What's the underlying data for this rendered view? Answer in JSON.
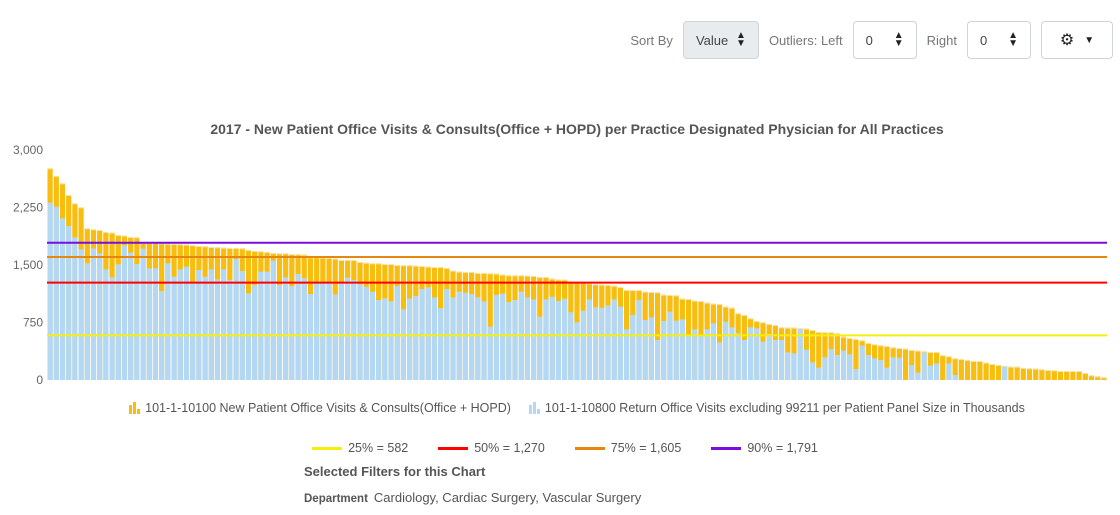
{
  "toolbar": {
    "sort_label": "Sort By",
    "sort_value": "Value",
    "outliers_left_label": "Outliers: Left",
    "outliers_left_value": "0",
    "right_label": "Right",
    "outliers_right_value": "0",
    "settings_icon": "gear-icon"
  },
  "chart_data": {
    "type": "bar",
    "title": "2017 - New Patient Office Visits & Consults(Office + HOPD) per Practice Designated Physician for All Practices",
    "ylim": [
      0,
      3000
    ],
    "yticks": [
      "0",
      "750",
      "1,500",
      "2,250",
      "3,000"
    ],
    "ytick_values": [
      0,
      750,
      1500,
      2250,
      3000
    ],
    "grid": false,
    "legend_placement": "bottom",
    "series": [
      {
        "name": "101-1-10100 New Patient Office Visits & Consults(Office + HOPD)",
        "color": "#f7bd10",
        "values": [
          2761,
          2661,
          2565,
          2413,
          2304,
          2252,
          1978,
          1965,
          1957,
          1930,
          1922,
          1891,
          1883,
          1865,
          1861,
          1791,
          1791,
          1791,
          1783,
          1778,
          1774,
          1770,
          1765,
          1757,
          1748,
          1744,
          1735,
          1731,
          1726,
          1722,
          1722,
          1717,
          1696,
          1683,
          1678,
          1670,
          1657,
          1652,
          1652,
          1643,
          1639,
          1635,
          1600,
          1600,
          1596,
          1591,
          1583,
          1565,
          1565,
          1565,
          1539,
          1530,
          1522,
          1522,
          1513,
          1513,
          1500,
          1496,
          1496,
          1491,
          1487,
          1478,
          1474,
          1474,
          1461,
          1426,
          1413,
          1409,
          1409,
          1396,
          1396,
          1391,
          1387,
          1374,
          1365,
          1365,
          1365,
          1361,
          1357,
          1343,
          1343,
          1322,
          1309,
          1309,
          1270,
          1270,
          1270,
          1261,
          1248,
          1243,
          1239,
          1230,
          1213,
          1174,
          1174,
          1174,
          1152,
          1148,
          1143,
          1113,
          1109,
          1104,
          1061,
          1057,
          1035,
          1030,
          1009,
          996,
          991,
          957,
          943,
          870,
          848,
          804,
          770,
          752,
          730,
          717,
          687,
          683,
          683,
          674,
          670,
          652,
          626,
          622,
          622,
          609,
          565,
          548,
          535,
          517,
          483,
          465,
          452,
          443,
          426,
          417,
          409,
          391,
          383,
          374,
          365,
          365,
          322,
          309,
          283,
          274,
          261,
          248,
          248,
          226,
          209,
          196,
          183,
          174,
          174,
          157,
          152,
          148,
          139,
          130,
          126,
          117,
          117,
          117,
          117,
          91,
          61,
          48,
          35
        ]
      },
      {
        "name": "101-1-10800 Return Office Visits excluding 99211 per Patient Panel Size in Thousands",
        "color": "#b3d8f6",
        "values": [
          2313,
          2261,
          2109,
          2009,
          1861,
          1704,
          1522,
          1717,
          1652,
          1443,
          1339,
          1509,
          1757,
          1661,
          1513,
          1713,
          1457,
          1457,
          1161,
          1522,
          1348,
          1443,
          1478,
          1270,
          1435,
          1348,
          1443,
          1313,
          1443,
          1304,
          1578,
          1422,
          1130,
          1239,
          1413,
          1413,
          1557,
          1239,
          1339,
          1226,
          1383,
          1326,
          1122,
          1270,
          1270,
          1270,
          1117,
          1270,
          1335,
          1304,
          1248,
          1217,
          1152,
          1043,
          1065,
          1026,
          1226,
          922,
          1061,
          1096,
          1187,
          1209,
          1078,
          935,
          1187,
          1078,
          1152,
          1139,
          1122,
          1078,
          1026,
          696,
          1109,
          1126,
          1017,
          1043,
          1152,
          1078,
          1052,
          826,
          1052,
          1087,
          1030,
          1061,
          883,
          752,
          904,
          1052,
          948,
          943,
          974,
          1052,
          957,
          661,
          848,
          1043,
          783,
          817,
          522,
          770,
          891,
          774,
          791,
          587,
          661,
          587,
          661,
          739,
          491,
          761,
          687,
          609,
          522,
          687,
          674,
          500,
          600,
          522,
          522,
          361,
          348,
          665,
          396,
          230,
          161,
          296,
          404,
          326,
          383,
          335,
          143,
          448,
          326,
          283,
          261,
          161,
          296,
          291,
          0,
          196,
          96,
          357,
          187,
          217,
          0,
          217,
          65,
          0,
          0,
          0,
          0,
          0,
          0,
          0,
          174,
          0,
          0,
          0,
          0,
          0,
          0,
          0,
          0,
          0,
          0,
          0,
          0,
          0,
          0,
          0,
          0
        ]
      }
    ],
    "reference_lines": [
      {
        "label": "25% = 582",
        "value": 582,
        "color": "#f5ef0a"
      },
      {
        "label": "50% = 1,270",
        "value": 1270,
        "color": "#ff0000"
      },
      {
        "label": "75% = 1,605",
        "value": 1605,
        "color": "#e8870f"
      },
      {
        "label": "90% = 1,791",
        "value": 1791,
        "color": "#7a0de0"
      }
    ]
  },
  "filters": {
    "title": "Selected Filters for this Chart",
    "department_label": "Department",
    "department_value": "Cardiology, Cardiac Surgery, Vascular Surgery"
  }
}
